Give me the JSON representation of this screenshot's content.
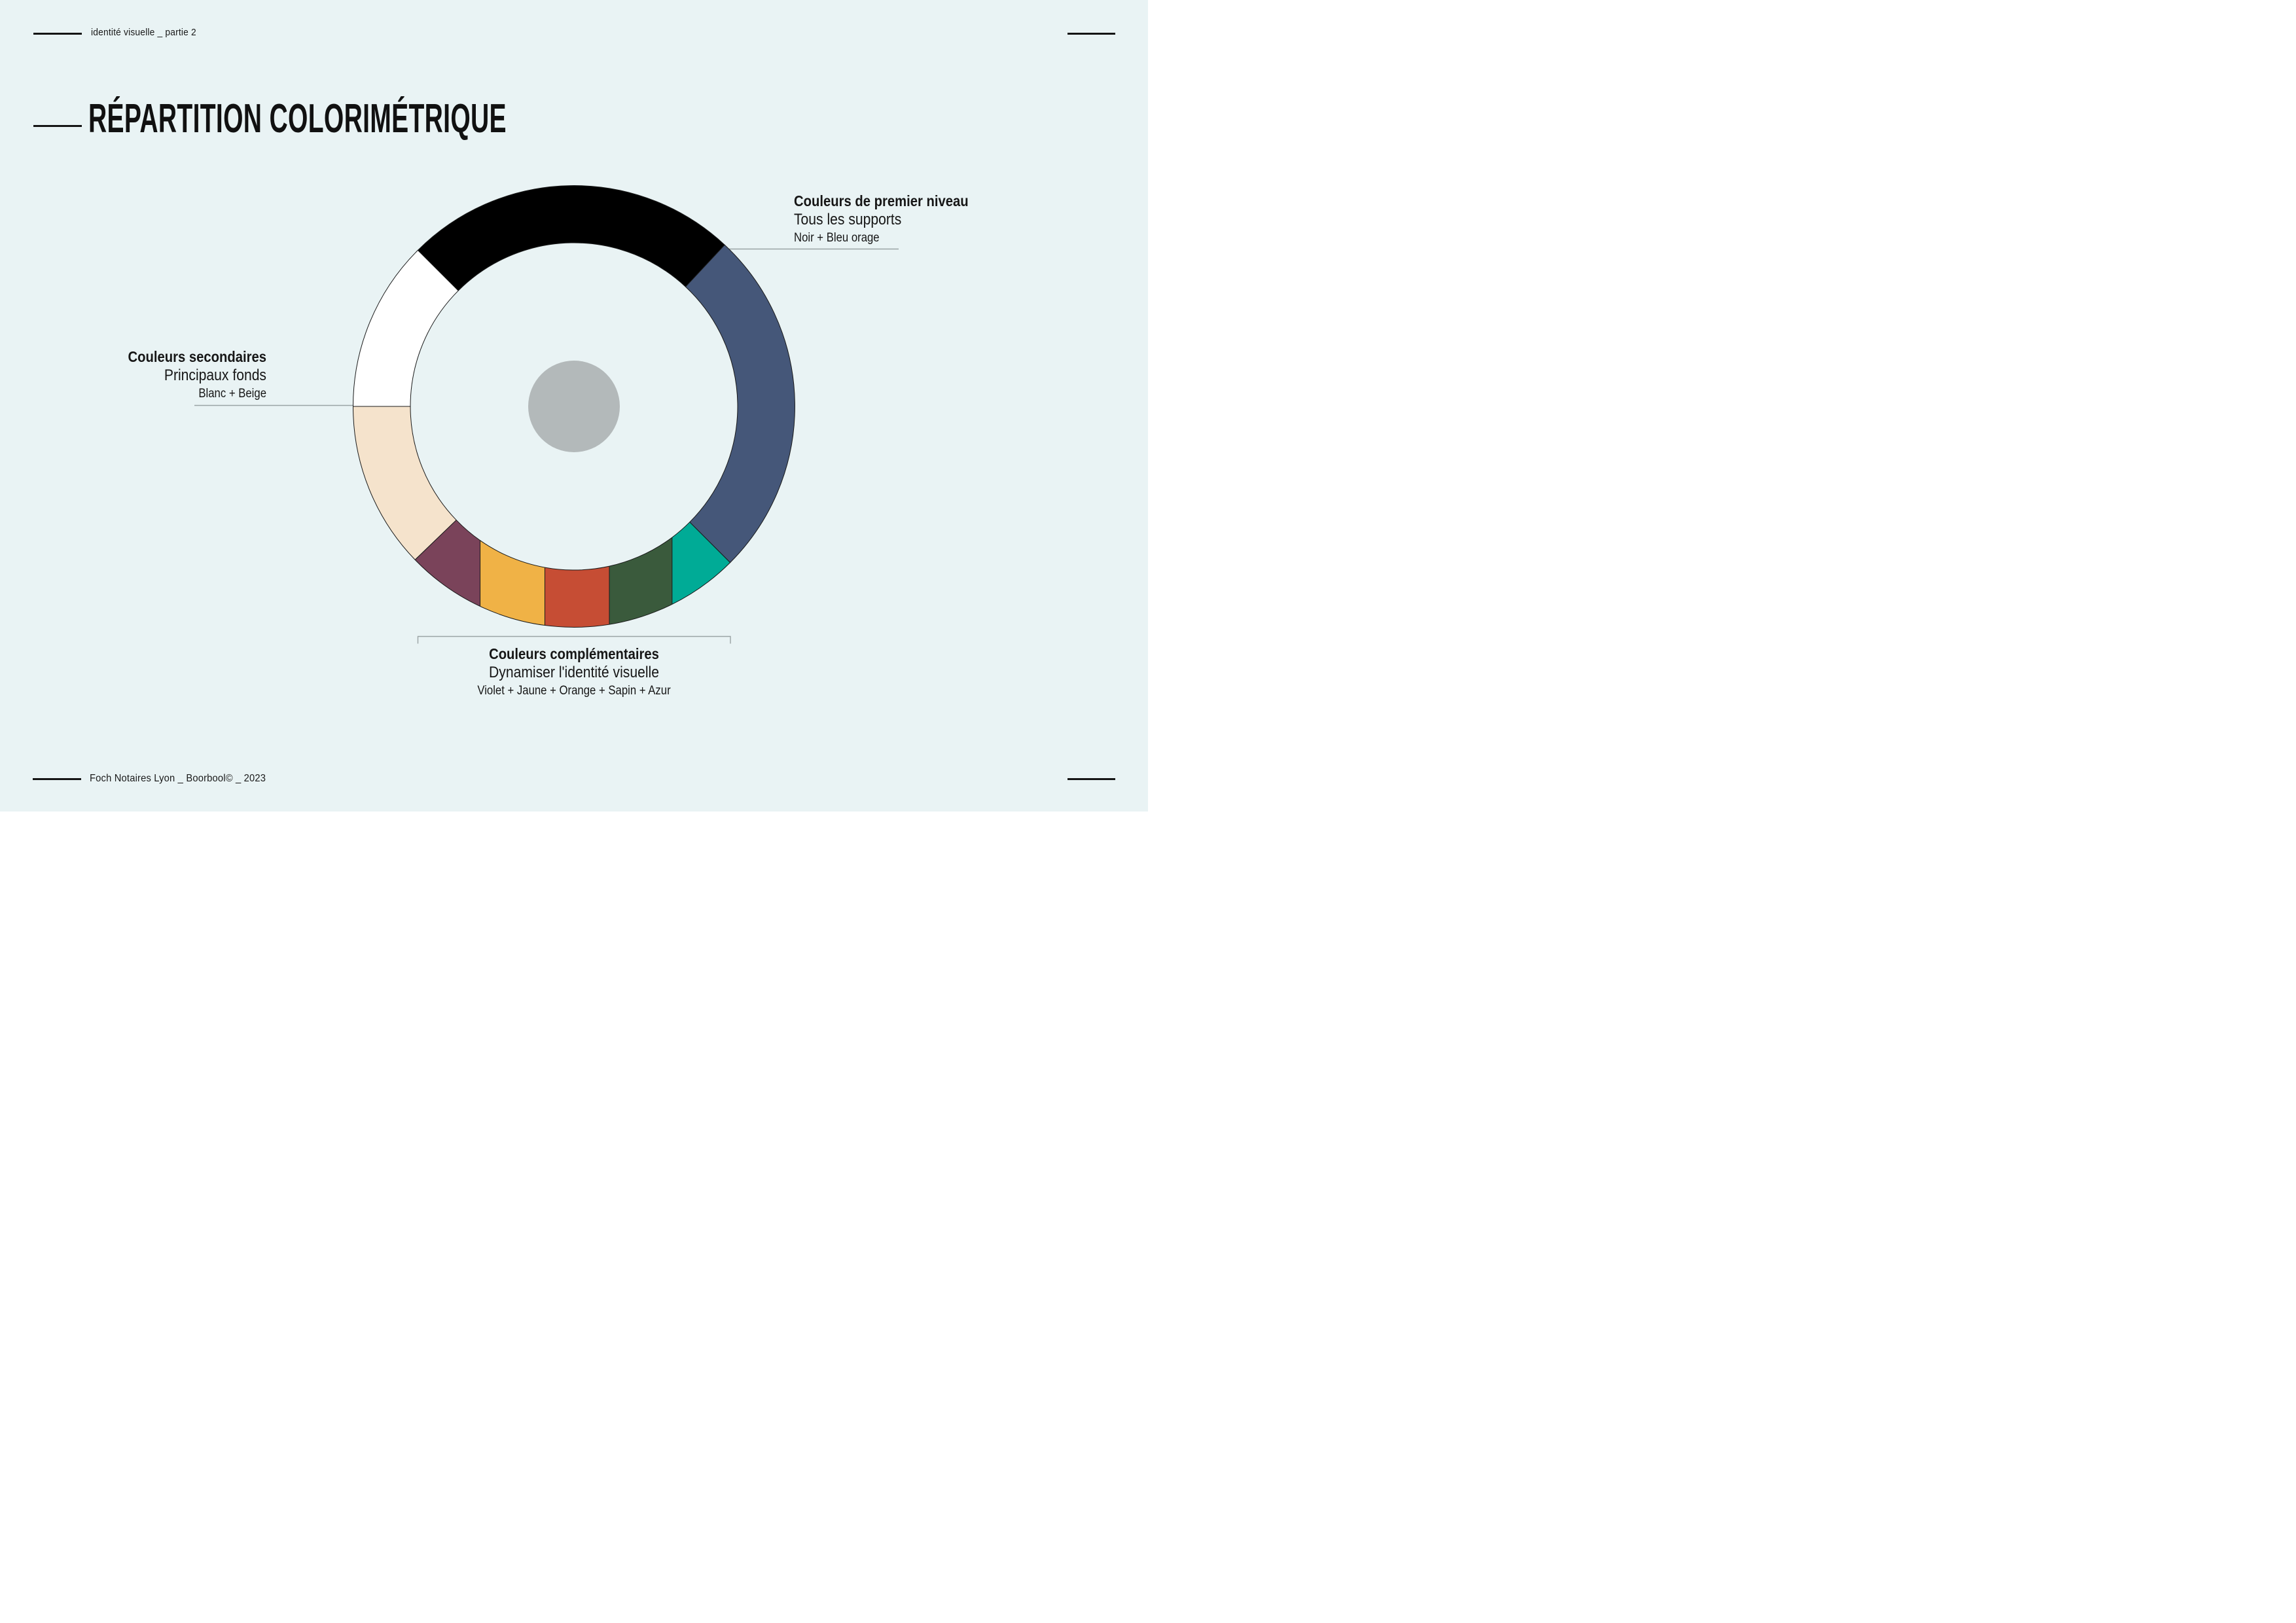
{
  "page": {
    "background": "#E9F3F4",
    "text_color": "#161616",
    "rule_color": "#141414",
    "leader_line_color": "#9AA3A4"
  },
  "header": {
    "left_text": "identité visuelle _ partie 2"
  },
  "title": "RÉPARTITION COLORIMÉTRIQUE",
  "footer": {
    "left_text": "Foch Notaires Lyon _ Boorbool© _ 2023"
  },
  "chart_data": {
    "type": "pie",
    "subtype": "donut",
    "title": "RÉPARTITION COLORIMÉTRIQUE",
    "legend_position": "around",
    "outline_color": "#1A1A1A",
    "center_dot_color": "#B3B9BA",
    "groups": [
      {
        "name": "Couleurs de premier niveau",
        "usage": "Tous les supports",
        "members": "Noir + Bleu orage"
      },
      {
        "name": "Couleurs secondaires",
        "usage": "Principaux fonds",
        "members": "Blanc + Beige"
      },
      {
        "name": "Couleurs complémentaires",
        "usage": "Dynamiser l'identité visuelle",
        "members": "Violet + Jaune + Orange + Sapin + Azur"
      }
    ],
    "segments": [
      {
        "name": "Noir",
        "color": "#000000",
        "share_pct": 24.5,
        "start_deg": -45,
        "end_deg": 43
      },
      {
        "name": "Bleu orage",
        "color": "#455779",
        "share_pct": 25.5,
        "start_deg": 43,
        "end_deg": 135
      },
      {
        "name": "Azur",
        "color": "#00AB96",
        "share_pct": 5
      },
      {
        "name": "Sapin",
        "color": "#3A5A3C",
        "share_pct": 5
      },
      {
        "name": "Orange",
        "color": "#C64D34",
        "share_pct": 5
      },
      {
        "name": "Jaune",
        "color": "#F0B246",
        "share_pct": 5
      },
      {
        "name": "Violet",
        "color": "#7A435A",
        "share_pct": 5
      },
      {
        "name": "Beige",
        "color": "#F5E3CC",
        "share_pct": 12.5,
        "start_deg": 226,
        "end_deg": 270
      },
      {
        "name": "Blanc",
        "color": "#FFFFFF",
        "share_pct": 12.5,
        "start_deg": 270,
        "end_deg": 315
      }
    ],
    "complementary_arc": {
      "start_deg": 135,
      "end_deg": 226,
      "order_left_to_right": [
        "Violet",
        "Jaune",
        "Orange",
        "Sapin",
        "Azur"
      ],
      "divider_x_fractions": [
        -0.425,
        -0.132,
        0.16,
        0.444
      ]
    }
  }
}
